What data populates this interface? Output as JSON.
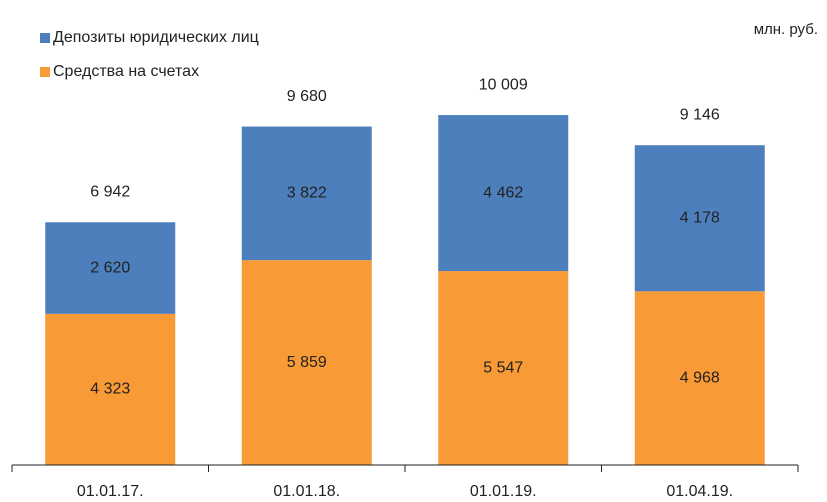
{
  "chart_data": {
    "type": "stacked_bar",
    "unit_label": "млн. руб.",
    "categories": [
      "01.01.17.",
      "01.01.18.",
      "01.01.19.",
      "01.04.19."
    ],
    "series": [
      {
        "name": "Средства на счетах",
        "color": "#f89a35",
        "values": [
          4323,
          5859,
          5547,
          4968
        ],
        "value_labels": [
          "4 323",
          "5 859",
          "5 547",
          "4 968"
        ]
      },
      {
        "name": "Депозиты юридических лиц",
        "color": "#4e7fbd",
        "values": [
          2620,
          3822,
          4462,
          4178
        ],
        "value_labels": [
          "2 620",
          "3 822",
          "4 462",
          "4 178"
        ]
      }
    ],
    "totals": [
      6942,
      9680,
      10009,
      9146
    ],
    "total_labels": [
      "6 942",
      "9 680",
      "10 009",
      "9 146"
    ],
    "ylim": [
      0,
      13300
    ]
  }
}
